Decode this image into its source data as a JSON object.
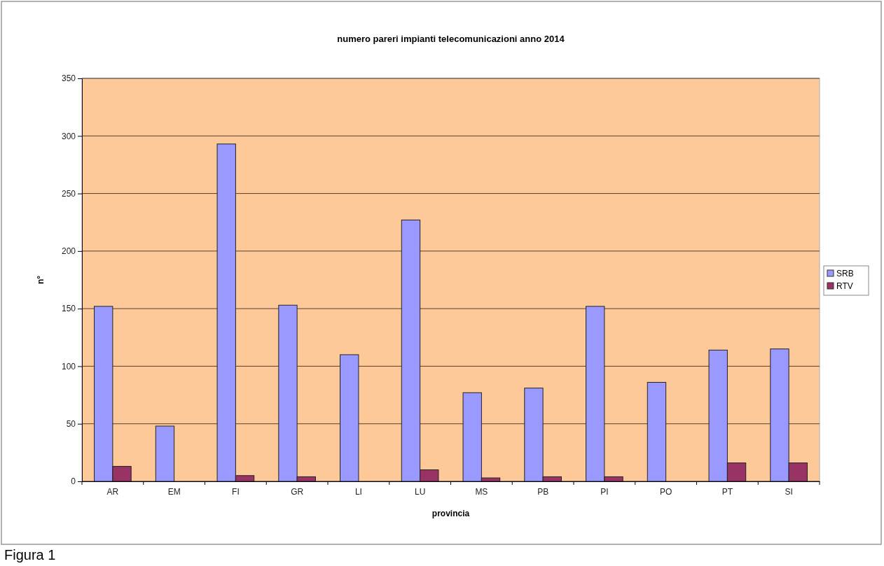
{
  "chart_data": {
    "type": "bar",
    "title": "numero pareri impianti telecomunicazioni anno 2014",
    "xlabel": "provincia",
    "ylabel": "n°",
    "categories": [
      "AR",
      "EM",
      "FI",
      "GR",
      "LI",
      "LU",
      "MS",
      "PB",
      "PI",
      "PO",
      "PT",
      "SI"
    ],
    "series": [
      {
        "name": "SRB",
        "color": "#9999ff",
        "values": [
          152,
          48,
          293,
          153,
          110,
          227,
          77,
          81,
          152,
          86,
          114,
          115
        ]
      },
      {
        "name": "RTV",
        "color": "#993366",
        "values": [
          13,
          0,
          5,
          4,
          0,
          10,
          3,
          4,
          4,
          0,
          16,
          16
        ]
      }
    ],
    "ylim": [
      0,
      350
    ],
    "yticks": [
      0,
      50,
      100,
      150,
      200,
      250,
      300,
      350
    ],
    "grid": "y",
    "legend": "right",
    "annotations": [
      "Figura 1"
    ]
  }
}
